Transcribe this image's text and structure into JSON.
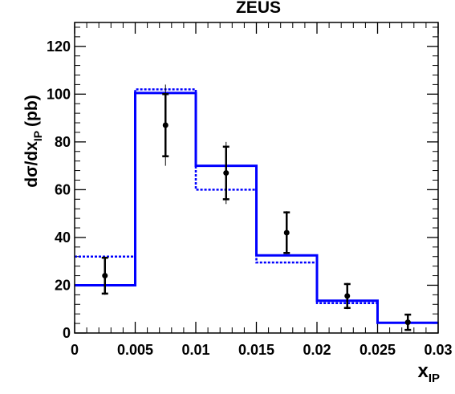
{
  "chart_data": {
    "type": "histogram",
    "title": "ZEUS",
    "ylabel": "dσ/dx",
    "ylabel_sub": "IP",
    "ylabel_unit": "(pb)",
    "xlabel": "x",
    "xlabel_sub": "IP",
    "xlim": [
      0,
      0.03
    ],
    "ylim": [
      0,
      130
    ],
    "x_ticks": [
      {
        "value": 0,
        "label": "0"
      },
      {
        "value": 0.005,
        "label": "0.005"
      },
      {
        "value": 0.01,
        "label": "0.01"
      },
      {
        "value": 0.015,
        "label": "0.015"
      },
      {
        "value": 0.02,
        "label": "0.02"
      },
      {
        "value": 0.025,
        "label": "0.025"
      },
      {
        "value": 0.03,
        "label": "0.03"
      }
    ],
    "y_ticks": [
      {
        "value": 0,
        "label": "0"
      },
      {
        "value": 20,
        "label": "20"
      },
      {
        "value": 40,
        "label": "40"
      },
      {
        "value": 60,
        "label": "60"
      },
      {
        "value": 80,
        "label": "80"
      },
      {
        "value": 100,
        "label": "100"
      },
      {
        "value": 120,
        "label": "120"
      }
    ],
    "bin_edges": [
      0,
      0.005,
      0.01,
      0.015,
      0.02,
      0.025,
      0.03
    ],
    "series": [
      {
        "style": "solid",
        "color": "#0000ff",
        "values": [
          20,
          100.5,
          70,
          32.5,
          13.5,
          4.3
        ]
      },
      {
        "style": "dotted",
        "color": "#0000ff",
        "values": [
          32,
          102,
          60,
          29.5,
          12.5,
          4.3
        ]
      },
      {
        "style": "points",
        "color": "#000000",
        "x": [
          0.0025,
          0.0075,
          0.0125,
          0.0175,
          0.0225,
          0.0275
        ],
        "y": [
          24,
          87,
          67,
          42,
          15.5,
          4.5
        ],
        "err_stat": [
          7.5,
          13,
          11,
          8.5,
          5,
          3.2
        ],
        "err_total": [
          8,
          17,
          13,
          9,
          5.5,
          3.5
        ]
      }
    ]
  }
}
